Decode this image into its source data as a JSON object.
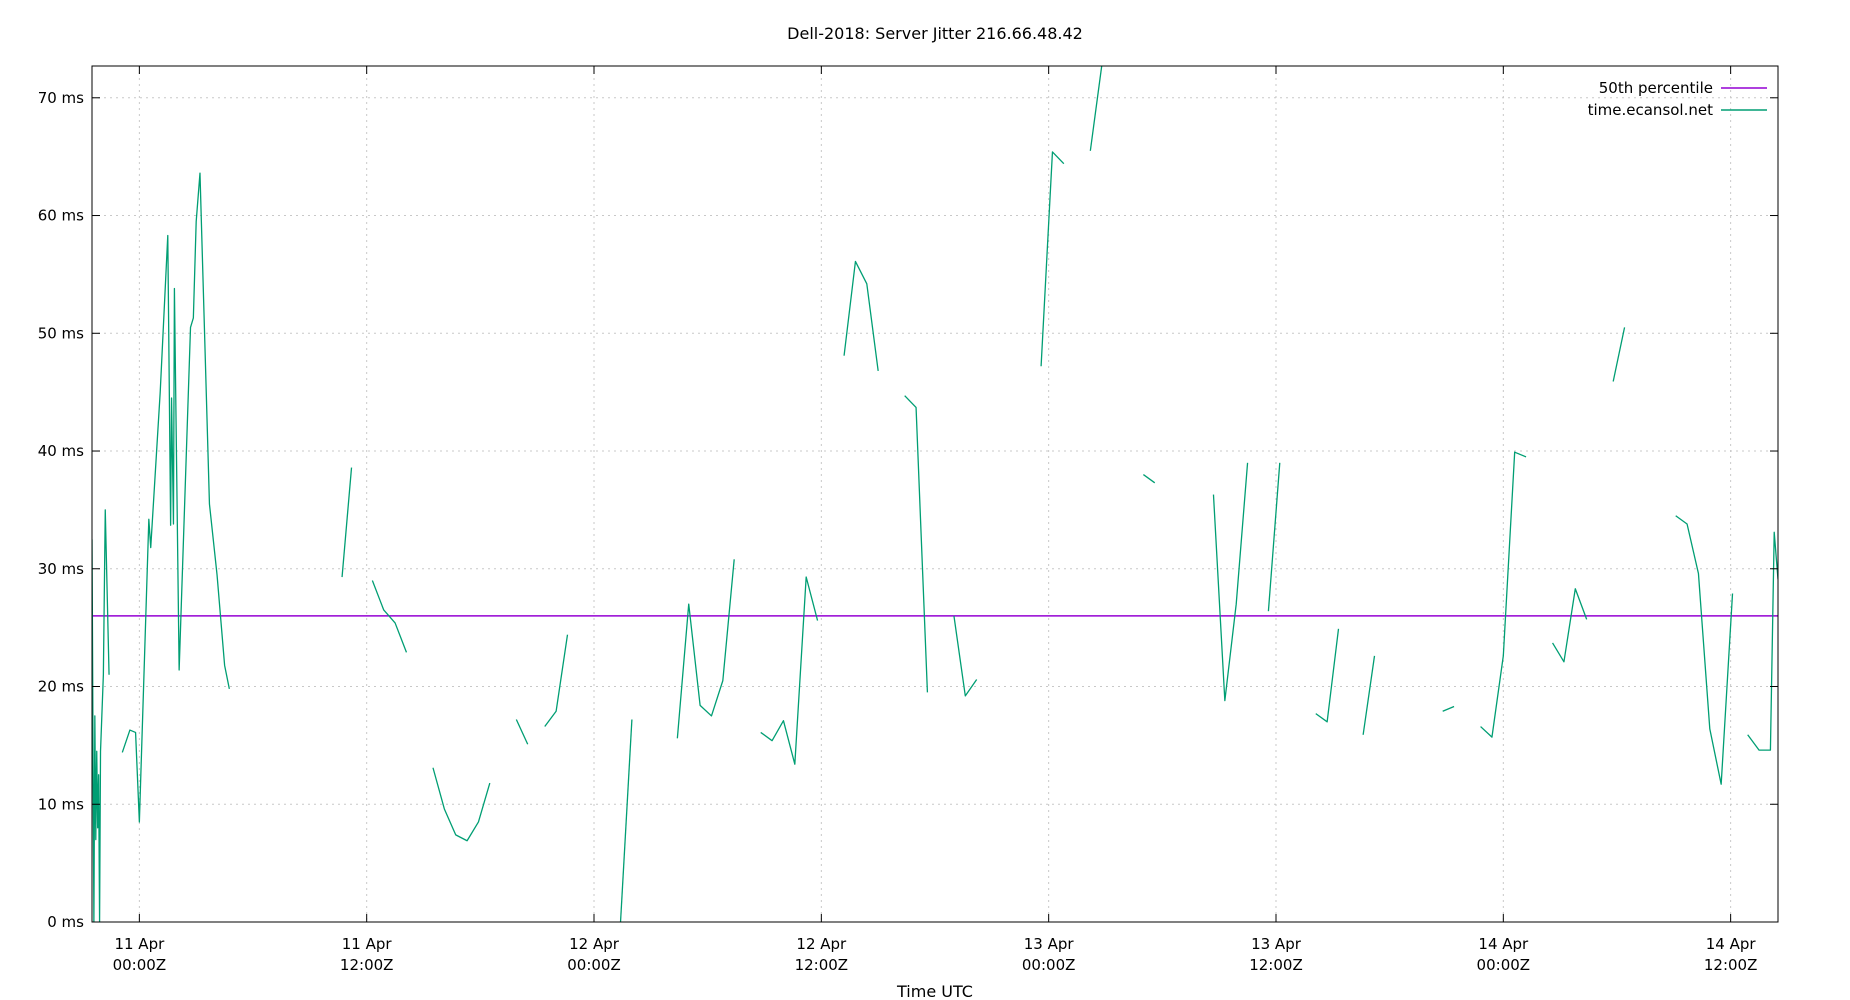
{
  "chart_data": {
    "type": "line",
    "title": "Dell-2018: Server Jitter 216.66.48.42",
    "xlabel": "Time UTC",
    "ylabel": "",
    "x_unit": "hours since 11 Apr 00:00Z",
    "xlim": [
      -2.5,
      86.5
    ],
    "ylim": [
      0,
      72.7
    ],
    "grid": true,
    "legend_position": "top-right",
    "y_ticks": [
      {
        "value": 0,
        "label": "0 ms"
      },
      {
        "value": 10,
        "label": "10 ms"
      },
      {
        "value": 20,
        "label": "20 ms"
      },
      {
        "value": 30,
        "label": "30 ms"
      },
      {
        "value": 40,
        "label": "40 ms"
      },
      {
        "value": 50,
        "label": "50 ms"
      },
      {
        "value": 60,
        "label": "60 ms"
      },
      {
        "value": 70,
        "label": "70 ms"
      }
    ],
    "x_ticks": [
      {
        "value": 0,
        "line1": "11 Apr",
        "line2": "00:00Z"
      },
      {
        "value": 12,
        "line1": "11 Apr",
        "line2": "12:00Z"
      },
      {
        "value": 24,
        "line1": "12 Apr",
        "line2": "00:00Z"
      },
      {
        "value": 36,
        "line1": "12 Apr",
        "line2": "12:00Z"
      },
      {
        "value": 48,
        "line1": "13 Apr",
        "line2": "00:00Z"
      },
      {
        "value": 60,
        "line1": "13 Apr",
        "line2": "12:00Z"
      },
      {
        "value": 72,
        "line1": "14 Apr",
        "line2": "00:00Z"
      },
      {
        "value": 84,
        "line1": "14 Apr",
        "line2": "12:00Z"
      }
    ],
    "series": [
      {
        "name": "50th percentile",
        "color": "#9400d3",
        "segments": [
          [
            [
              -2.5,
              26.0
            ],
            [
              86.5,
              26.0
            ]
          ]
        ]
      },
      {
        "name": "time.ecansol.net",
        "color": "#009e73",
        "segments": [
          [
            [
              -2.5,
              32.5
            ],
            [
              -2.4,
              0
            ],
            [
              -2.35,
              17.5
            ],
            [
              -2.3,
              7
            ],
            [
              -2.25,
              14.5
            ],
            [
              -2.2,
              8
            ],
            [
              -2.15,
              12.5
            ],
            [
              -2.1,
              0
            ],
            [
              -2.05,
              14.5
            ],
            [
              -1.9,
              21
            ],
            [
              -1.8,
              35
            ],
            [
              -1.6,
              21
            ]
          ],
          [
            [
              -0.9,
              14.4
            ],
            [
              -0.5,
              16.3
            ],
            [
              -0.2,
              16.1
            ],
            [
              0.0,
              8.5
            ],
            [
              0.5,
              34.2
            ],
            [
              0.6,
              31.8
            ],
            [
              1.1,
              45
            ],
            [
              1.5,
              58.3
            ],
            [
              1.65,
              33.7
            ],
            [
              1.7,
              44.5
            ],
            [
              1.8,
              33.8
            ],
            [
              1.85,
              53.8
            ],
            [
              2.1,
              21.4
            ],
            [
              2.7,
              50.5
            ],
            [
              2.85,
              51.3
            ],
            [
              3.0,
              59.5
            ],
            [
              3.2,
              63.6
            ],
            [
              3.7,
              35.5
            ],
            [
              4.1,
              29.5
            ],
            [
              4.5,
              21.8
            ],
            [
              4.75,
              19.8
            ]
          ],
          [
            [
              10.7,
              29.3
            ],
            [
              11.2,
              38.6
            ]
          ],
          [
            [
              12.3,
              29
            ],
            [
              12.9,
              26.5
            ],
            [
              13.5,
              25.4
            ],
            [
              14.1,
              22.9
            ]
          ],
          [
            [
              15.5,
              13.1
            ],
            [
              16.1,
              9.6
            ],
            [
              16.7,
              7.4
            ],
            [
              17.3,
              6.9
            ],
            [
              17.9,
              8.5
            ],
            [
              18.5,
              11.8
            ]
          ],
          [
            [
              19.9,
              17.2
            ],
            [
              20.5,
              15.1
            ]
          ],
          [
            [
              21.4,
              16.6
            ],
            [
              22.0,
              17.9
            ],
            [
              22.6,
              24.4
            ]
          ],
          [
            [
              25.4,
              0
            ],
            [
              26.0,
              17.2
            ]
          ],
          [
            [
              28.4,
              15.6
            ],
            [
              29.0,
              27
            ],
            [
              29.6,
              18.4
            ],
            [
              30.2,
              17.5
            ],
            [
              30.8,
              20.5
            ],
            [
              31.4,
              30.8
            ]
          ],
          [
            [
              32.8,
              16.1
            ],
            [
              33.4,
              15.4
            ],
            [
              34.0,
              17.1
            ],
            [
              34.6,
              13.4
            ],
            [
              35.2,
              29.3
            ],
            [
              35.8,
              25.6
            ]
          ],
          [
            [
              37.2,
              48.1
            ],
            [
              37.8,
              56.1
            ],
            [
              38.4,
              54.2
            ],
            [
              39.0,
              46.8
            ]
          ],
          [
            [
              40.4,
              44.7
            ],
            [
              41.0,
              43.7
            ],
            [
              41.6,
              19.5
            ]
          ],
          [
            [
              43.0,
              26
            ],
            [
              43.6,
              19.2
            ],
            [
              44.2,
              20.6
            ]
          ],
          [
            [
              47.6,
              47.2
            ],
            [
              48.2,
              65.4
            ],
            [
              48.8,
              64.4
            ]
          ],
          [
            [
              50.2,
              65.5
            ],
            [
              50.8,
              72.7
            ]
          ],
          [
            [
              53.0,
              38.0
            ],
            [
              53.6,
              37.3
            ]
          ],
          [
            [
              56.7,
              36.3
            ],
            [
              57.3,
              18.8
            ],
            [
              57.9,
              27
            ],
            [
              58.5,
              39
            ]
          ],
          [
            [
              59.6,
              26.4
            ],
            [
              60.2,
              39.0
            ]
          ],
          [
            [
              62.1,
              17.7
            ],
            [
              62.7,
              17.0
            ],
            [
              63.3,
              24.9
            ]
          ],
          [
            [
              64.6,
              15.9
            ],
            [
              65.2,
              22.6
            ]
          ],
          [
            [
              68.8,
              17.9
            ],
            [
              69.4,
              18.3
            ]
          ],
          [
            [
              70.8,
              16.6
            ],
            [
              71.4,
              15.7
            ],
            [
              72.0,
              22.6
            ],
            [
              72.6,
              39.9
            ],
            [
              73.2,
              39.5
            ]
          ],
          [
            [
              74.6,
              23.7
            ],
            [
              75.2,
              22.1
            ],
            [
              75.8,
              28.3
            ],
            [
              76.4,
              25.7
            ]
          ],
          [
            [
              77.8,
              45.9
            ],
            [
              78.4,
              50.5
            ]
          ],
          [
            [
              81.1,
              34.5
            ],
            [
              81.7,
              33.8
            ],
            [
              82.3,
              29.6
            ],
            [
              82.9,
              16.4
            ],
            [
              83.5,
              11.7
            ],
            [
              84.1,
              27.9
            ]
          ],
          [
            [
              84.9,
              15.9
            ],
            [
              85.5,
              14.6
            ],
            [
              86.1,
              14.6
            ],
            [
              86.3,
              33.1
            ],
            [
              86.5,
              29.1
            ]
          ]
        ]
      }
    ]
  }
}
